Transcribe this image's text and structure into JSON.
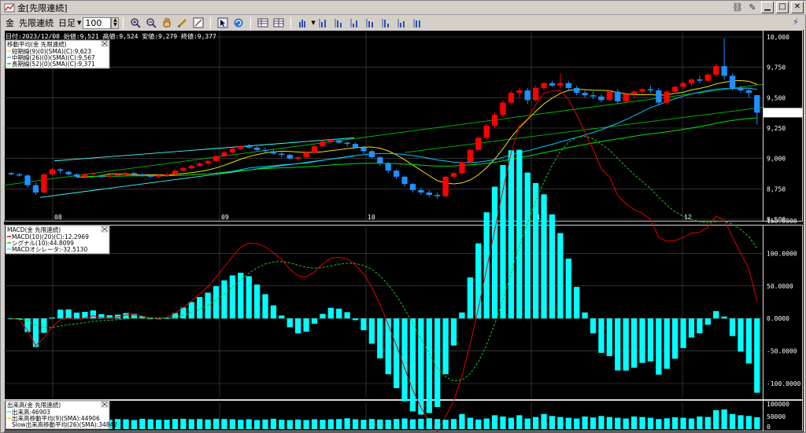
{
  "window": {
    "title": "金[先限連続]"
  },
  "toolbar": {
    "instrument_label": "金",
    "contract_combo": "先限連続",
    "period_combo": "日足",
    "bar_count": "100"
  },
  "colors": {
    "up_candle": "#ff0000",
    "down_candle": "#1e90ff",
    "short_ma": "#f0e000",
    "mid_ma": "#00c8ff",
    "long_ma": "#00e000",
    "macd_line": "#e00000",
    "signal_line": "#20c020",
    "oscillator": "#00ffff",
    "trendline": "#40ffff"
  },
  "price_panel": {
    "header": "日付:2023/12/08 始値:9,521 高値:9,524 安値:9,279 終値:9,377",
    "legend_title": "移動平均(金 先限連続)",
    "legend_items": [
      "短期線(9)(0)(SMA)(C):9,623",
      "中期線(26)(0)(SMA)(C):9,567",
      "長期線(52)(0)(SMA)(C):9,371"
    ],
    "y_ticks": [
      "10,000",
      "9,750",
      "9,500",
      "9,250",
      "9,000",
      "8,750",
      "8,500"
    ],
    "y_tick_values": [
      10000,
      9750,
      9500,
      9250,
      9000,
      8750,
      8500
    ],
    "current_price": "9,377",
    "month_labels": [
      "08",
      "09",
      "10",
      "11",
      "12"
    ]
  },
  "macd_panel": {
    "legend_title": "MACD(金 先限連続)",
    "legend_items": [
      "MACD(10)(20)(C):12.2969",
      "シグナル(10):44.8099",
      "MACDオシレータ:-32.5130"
    ],
    "y_ticks": [
      "150.0000",
      "100.0000",
      "50.0000",
      "0.0000",
      "-50.0000",
      "-100.0000"
    ],
    "y_tick_values": [
      150,
      100,
      50,
      0,
      -50,
      -100
    ]
  },
  "volume_panel": {
    "legend_title": "出来高(金 先限連続)",
    "legend_items": [
      "出来高:46903",
      "出来高移動平均(9)(SMA):44906",
      "Slow出来高移動平均(26)(SMA):34842"
    ],
    "y_ticks": [
      "100000",
      "50000",
      "0"
    ],
    "y_tick_values": [
      100000,
      50000,
      0
    ]
  },
  "chart_data": {
    "type": "candlestick",
    "candles": [
      [
        8880,
        8890,
        8860,
        8870
      ],
      [
        8870,
        8880,
        8850,
        8860
      ],
      [
        8860,
        8870,
        8760,
        8780
      ],
      [
        8780,
        8800,
        8700,
        8720
      ],
      [
        8720,
        8880,
        8710,
        8870
      ],
      [
        8870,
        8920,
        8860,
        8910
      ],
      [
        8910,
        8920,
        8880,
        8900
      ],
      [
        8890,
        8900,
        8860,
        8870
      ],
      [
        8870,
        8880,
        8840,
        8850
      ],
      [
        8850,
        8880,
        8840,
        8870
      ],
      [
        8870,
        8890,
        8860,
        8880
      ],
      [
        8860,
        8870,
        8840,
        8850
      ],
      [
        8850,
        8870,
        8840,
        8860
      ],
      [
        8860,
        8880,
        8850,
        8870
      ],
      [
        8870,
        8890,
        8860,
        8880
      ],
      [
        8880,
        8890,
        8860,
        8870
      ],
      [
        8870,
        8880,
        8850,
        8860
      ],
      [
        8860,
        8870,
        8840,
        8850
      ],
      [
        8850,
        8870,
        8840,
        8860
      ],
      [
        8860,
        8880,
        8850,
        8870
      ],
      [
        8870,
        8910,
        8860,
        8900
      ],
      [
        8900,
        8930,
        8890,
        8920
      ],
      [
        8920,
        8950,
        8910,
        8940
      ],
      [
        8940,
        8970,
        8930,
        8960
      ],
      [
        8960,
        8990,
        8950,
        8980
      ],
      [
        8980,
        9030,
        8970,
        9020
      ],
      [
        9020,
        9060,
        9010,
        9050
      ],
      [
        9050,
        9090,
        9040,
        9080
      ],
      [
        9080,
        9110,
        9070,
        9100
      ],
      [
        9100,
        9120,
        9080,
        9090
      ],
      [
        9090,
        9100,
        9060,
        9070
      ],
      [
        9070,
        9090,
        9050,
        9060
      ],
      [
        9060,
        9080,
        9030,
        9040
      ],
      [
        9040,
        9060,
        9010,
        9030
      ],
      [
        9030,
        9040,
        8990,
        9000
      ],
      [
        9000,
        9020,
        8980,
        9010
      ],
      [
        9010,
        9060,
        9000,
        9050
      ],
      [
        9050,
        9110,
        9040,
        9100
      ],
      [
        9100,
        9150,
        9090,
        9140
      ],
      [
        9140,
        9160,
        9120,
        9150
      ],
      [
        9150,
        9160,
        9120,
        9130
      ],
      [
        9130,
        9140,
        9100,
        9120
      ],
      [
        9120,
        9130,
        9080,
        9090
      ],
      [
        9090,
        9100,
        9040,
        9060
      ],
      [
        9060,
        9070,
        9000,
        9010
      ],
      [
        9010,
        9020,
        8940,
        8960
      ],
      [
        8960,
        8970,
        8880,
        8900
      ],
      [
        8900,
        8910,
        8830,
        8850
      ],
      [
        8850,
        8860,
        8770,
        8790
      ],
      [
        8790,
        8800,
        8720,
        8740
      ],
      [
        8740,
        8760,
        8700,
        8720
      ],
      [
        8720,
        8740,
        8680,
        8700
      ],
      [
        8700,
        8720,
        8670,
        8690
      ],
      [
        8690,
        8860,
        8680,
        8850
      ],
      [
        8850,
        8890,
        8840,
        8880
      ],
      [
        8880,
        8980,
        8870,
        8970
      ],
      [
        8970,
        9080,
        8960,
        9070
      ],
      [
        9070,
        9180,
        9060,
        9170
      ],
      [
        9170,
        9290,
        9150,
        9270
      ],
      [
        9270,
        9380,
        9250,
        9360
      ],
      [
        9360,
        9480,
        9340,
        9460
      ],
      [
        9460,
        9560,
        9440,
        9540
      ],
      [
        9540,
        9580,
        9500,
        9560
      ],
      [
        9560,
        9580,
        9450,
        9480
      ],
      [
        9480,
        9600,
        9470,
        9580
      ],
      [
        9580,
        9630,
        9560,
        9620
      ],
      [
        9620,
        9640,
        9590,
        9600
      ],
      [
        9600,
        9700,
        9580,
        9620
      ],
      [
        9620,
        9640,
        9560,
        9580
      ],
      [
        9580,
        9600,
        9520,
        9540
      ],
      [
        9540,
        9560,
        9500,
        9520
      ],
      [
        9520,
        9550,
        9490,
        9510
      ],
      [
        9510,
        9530,
        9460,
        9480
      ],
      [
        9480,
        9560,
        9470,
        9550
      ],
      [
        9550,
        9570,
        9450,
        9470
      ],
      [
        9470,
        9540,
        9460,
        9530
      ],
      [
        9530,
        9560,
        9500,
        9550
      ],
      [
        9550,
        9580,
        9530,
        9570
      ],
      [
        9570,
        9600,
        9540,
        9560
      ],
      [
        9560,
        9580,
        9440,
        9460
      ],
      [
        9460,
        9560,
        9450,
        9550
      ],
      [
        9550,
        9600,
        9530,
        9590
      ],
      [
        9590,
        9630,
        9570,
        9620
      ],
      [
        9620,
        9660,
        9600,
        9650
      ],
      [
        9650,
        9680,
        9620,
        9640
      ],
      [
        9640,
        9700,
        9630,
        9690
      ],
      [
        9690,
        9780,
        9680,
        9760
      ],
      [
        9760,
        9990,
        9650,
        9680
      ],
      [
        9680,
        9700,
        9560,
        9580
      ],
      [
        9580,
        9600,
        9540,
        9560
      ],
      [
        9560,
        9580,
        9500,
        9540
      ],
      [
        9521,
        9524,
        9279,
        9377
      ]
    ],
    "volume": [
      48000,
      46000,
      47000,
      47000,
      44000,
      40000,
      36000,
      41000,
      38000,
      36000,
      40000,
      38000,
      37000,
      40000,
      39000,
      36000,
      41000,
      39000,
      37000,
      37000,
      40000,
      41000,
      39000,
      40000,
      38000,
      41000,
      40000,
      39000,
      37000,
      39000,
      36000,
      38000,
      41000,
      37000,
      36000,
      38000,
      36000,
      39000,
      37000,
      39000,
      40000,
      43000,
      39000,
      37000,
      40000,
      38000,
      37000,
      40000,
      42000,
      39000,
      41000,
      43000,
      40000,
      37000,
      40000,
      60000,
      45000,
      38000,
      42000,
      55000,
      50000,
      45000,
      55000,
      42000,
      48000,
      60000,
      52000,
      48000,
      45000,
      42000,
      50000,
      46000,
      52000,
      48000,
      45000,
      42000,
      50000,
      48000,
      45000,
      40000,
      43000,
      47000,
      45000,
      42000,
      50000,
      48000,
      75000,
      78000,
      60000,
      55000,
      52000,
      46903
    ],
    "y_range": [
      8500,
      10000
    ],
    "macd_range": [
      -100,
      150
    ],
    "volume_range": [
      0,
      100000
    ]
  }
}
